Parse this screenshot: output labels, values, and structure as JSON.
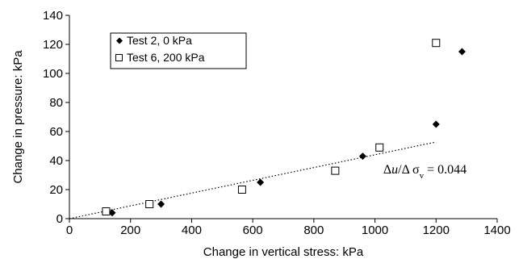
{
  "chart_data": {
    "type": "scatter",
    "xlabel": "Change in vertical stress: kPa",
    "ylabel": "Change in pressure: kPa",
    "xlim": [
      0,
      1400
    ],
    "ylim": [
      0,
      140
    ],
    "xticks": [
      "0",
      "200",
      "400",
      "600",
      "800",
      "1000",
      "1200",
      "1400"
    ],
    "yticks": [
      "0",
      "20",
      "40",
      "60",
      "80",
      "100",
      "120",
      "140"
    ],
    "grid": false,
    "legend_position": "top-left",
    "series": [
      {
        "name": "Test 2, 0 kPa",
        "marker": "filled-diamond",
        "color": "#000000",
        "points": [
          [
            140,
            4
          ],
          [
            300,
            10
          ],
          [
            625,
            25
          ],
          [
            960,
            43
          ],
          [
            1200,
            65
          ],
          [
            1285,
            115
          ]
        ]
      },
      {
        "name": "Test 6, 200 kPa",
        "marker": "open-square",
        "color": "#000000",
        "points": [
          [
            120,
            5
          ],
          [
            262,
            10
          ],
          [
            565,
            20
          ],
          [
            870,
            33
          ],
          [
            1015,
            49
          ],
          [
            1200,
            121
          ]
        ]
      }
    ],
    "trendline": {
      "style": "dotted",
      "x": [
        0,
        1200
      ],
      "y": [
        0,
        52.8
      ]
    },
    "annotation": {
      "prefix": "Δ",
      "u": "u",
      "sep": "/Δ σ",
      "sub": "v",
      "suffix": " = 0.044",
      "at": [
        1300,
        31
      ]
    }
  }
}
